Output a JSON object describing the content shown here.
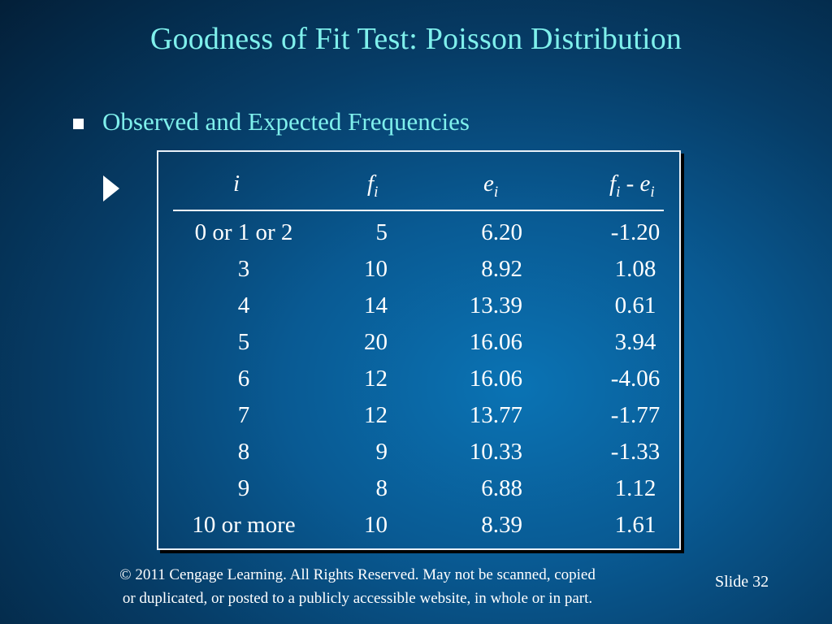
{
  "slide": {
    "title": "Goodness of Fit Test:  Poisson Distribution",
    "bullet": "Observed and Expected Frequencies"
  },
  "table": {
    "headers": {
      "i_var": "i",
      "f_var": "f",
      "f_sub": "i",
      "e_var": "e",
      "e_sub": "i",
      "diff_f_var": "f",
      "diff_f_sub": "i",
      "diff_op": " - ",
      "diff_e_var": "e",
      "diff_e_sub": "i"
    },
    "rows": [
      {
        "i": "0 or 1 or 2",
        "f": "5",
        "e": "6.20",
        "d": "-1.20"
      },
      {
        "i": "3",
        "f": "10",
        "e": "8.92",
        "d": "1.08"
      },
      {
        "i": "4",
        "f": "14",
        "e": "13.39",
        "d": "0.61"
      },
      {
        "i": "5",
        "f": "20",
        "e": "16.06",
        "d": "3.94"
      },
      {
        "i": "6",
        "f": "12",
        "e": "16.06",
        "d": "-4.06"
      },
      {
        "i": "7",
        "f": "12",
        "e": "13.77",
        "d": "-1.77"
      },
      {
        "i": "8",
        "f": "9",
        "e": "10.33",
        "d": "-1.33"
      },
      {
        "i": "9",
        "f": "8",
        "e": "6.88",
        "d": "1.12"
      },
      {
        "i": "10 or more",
        "f": "10",
        "e": "8.39",
        "d": "1.61"
      }
    ]
  },
  "footer": {
    "line1": "© 2011  Cengage Learning.  All Rights Reserved.  May not be scanned, copied",
    "line2": "or duplicated, or posted to a publicly accessible website, in whole or in part.",
    "slide_label": "Slide  32"
  }
}
